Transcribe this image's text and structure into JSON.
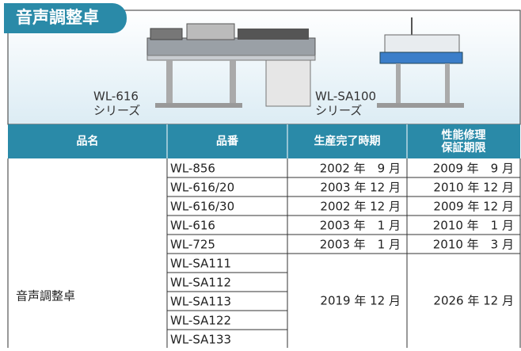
{
  "header": {
    "title": "音声調整卓",
    "products": [
      {
        "model": "WL-616",
        "series": "シリーズ"
      },
      {
        "model": "WL-SA100",
        "series": "シリーズ"
      }
    ]
  },
  "table": {
    "columns": [
      "品名",
      "品番",
      "生産完了時期",
      [
        "性能修理",
        "保証期限"
      ]
    ],
    "category": "音声調整卓",
    "rows": [
      [
        "WL-856",
        "2002 年　9 月",
        "2009 年　9 月"
      ],
      [
        "WL-616/20",
        "2003 年 12 月",
        "2010 年 12 月"
      ],
      [
        "WL-616/30",
        "2002 年 12 月",
        "2009 年 12 月"
      ],
      [
        "WL-616",
        "2003 年　1 月",
        "2010 年　1 月"
      ],
      [
        "WL-725",
        "2003 年　1 月",
        "2010 年　3 月"
      ]
    ],
    "group": {
      "models": [
        "WL-SA111",
        "WL-SA112",
        "WL-SA113",
        "WL-SA122",
        "WL-SA133"
      ],
      "production": "2019 年 12 月",
      "warranty": "2026 年 12 月"
    }
  }
}
